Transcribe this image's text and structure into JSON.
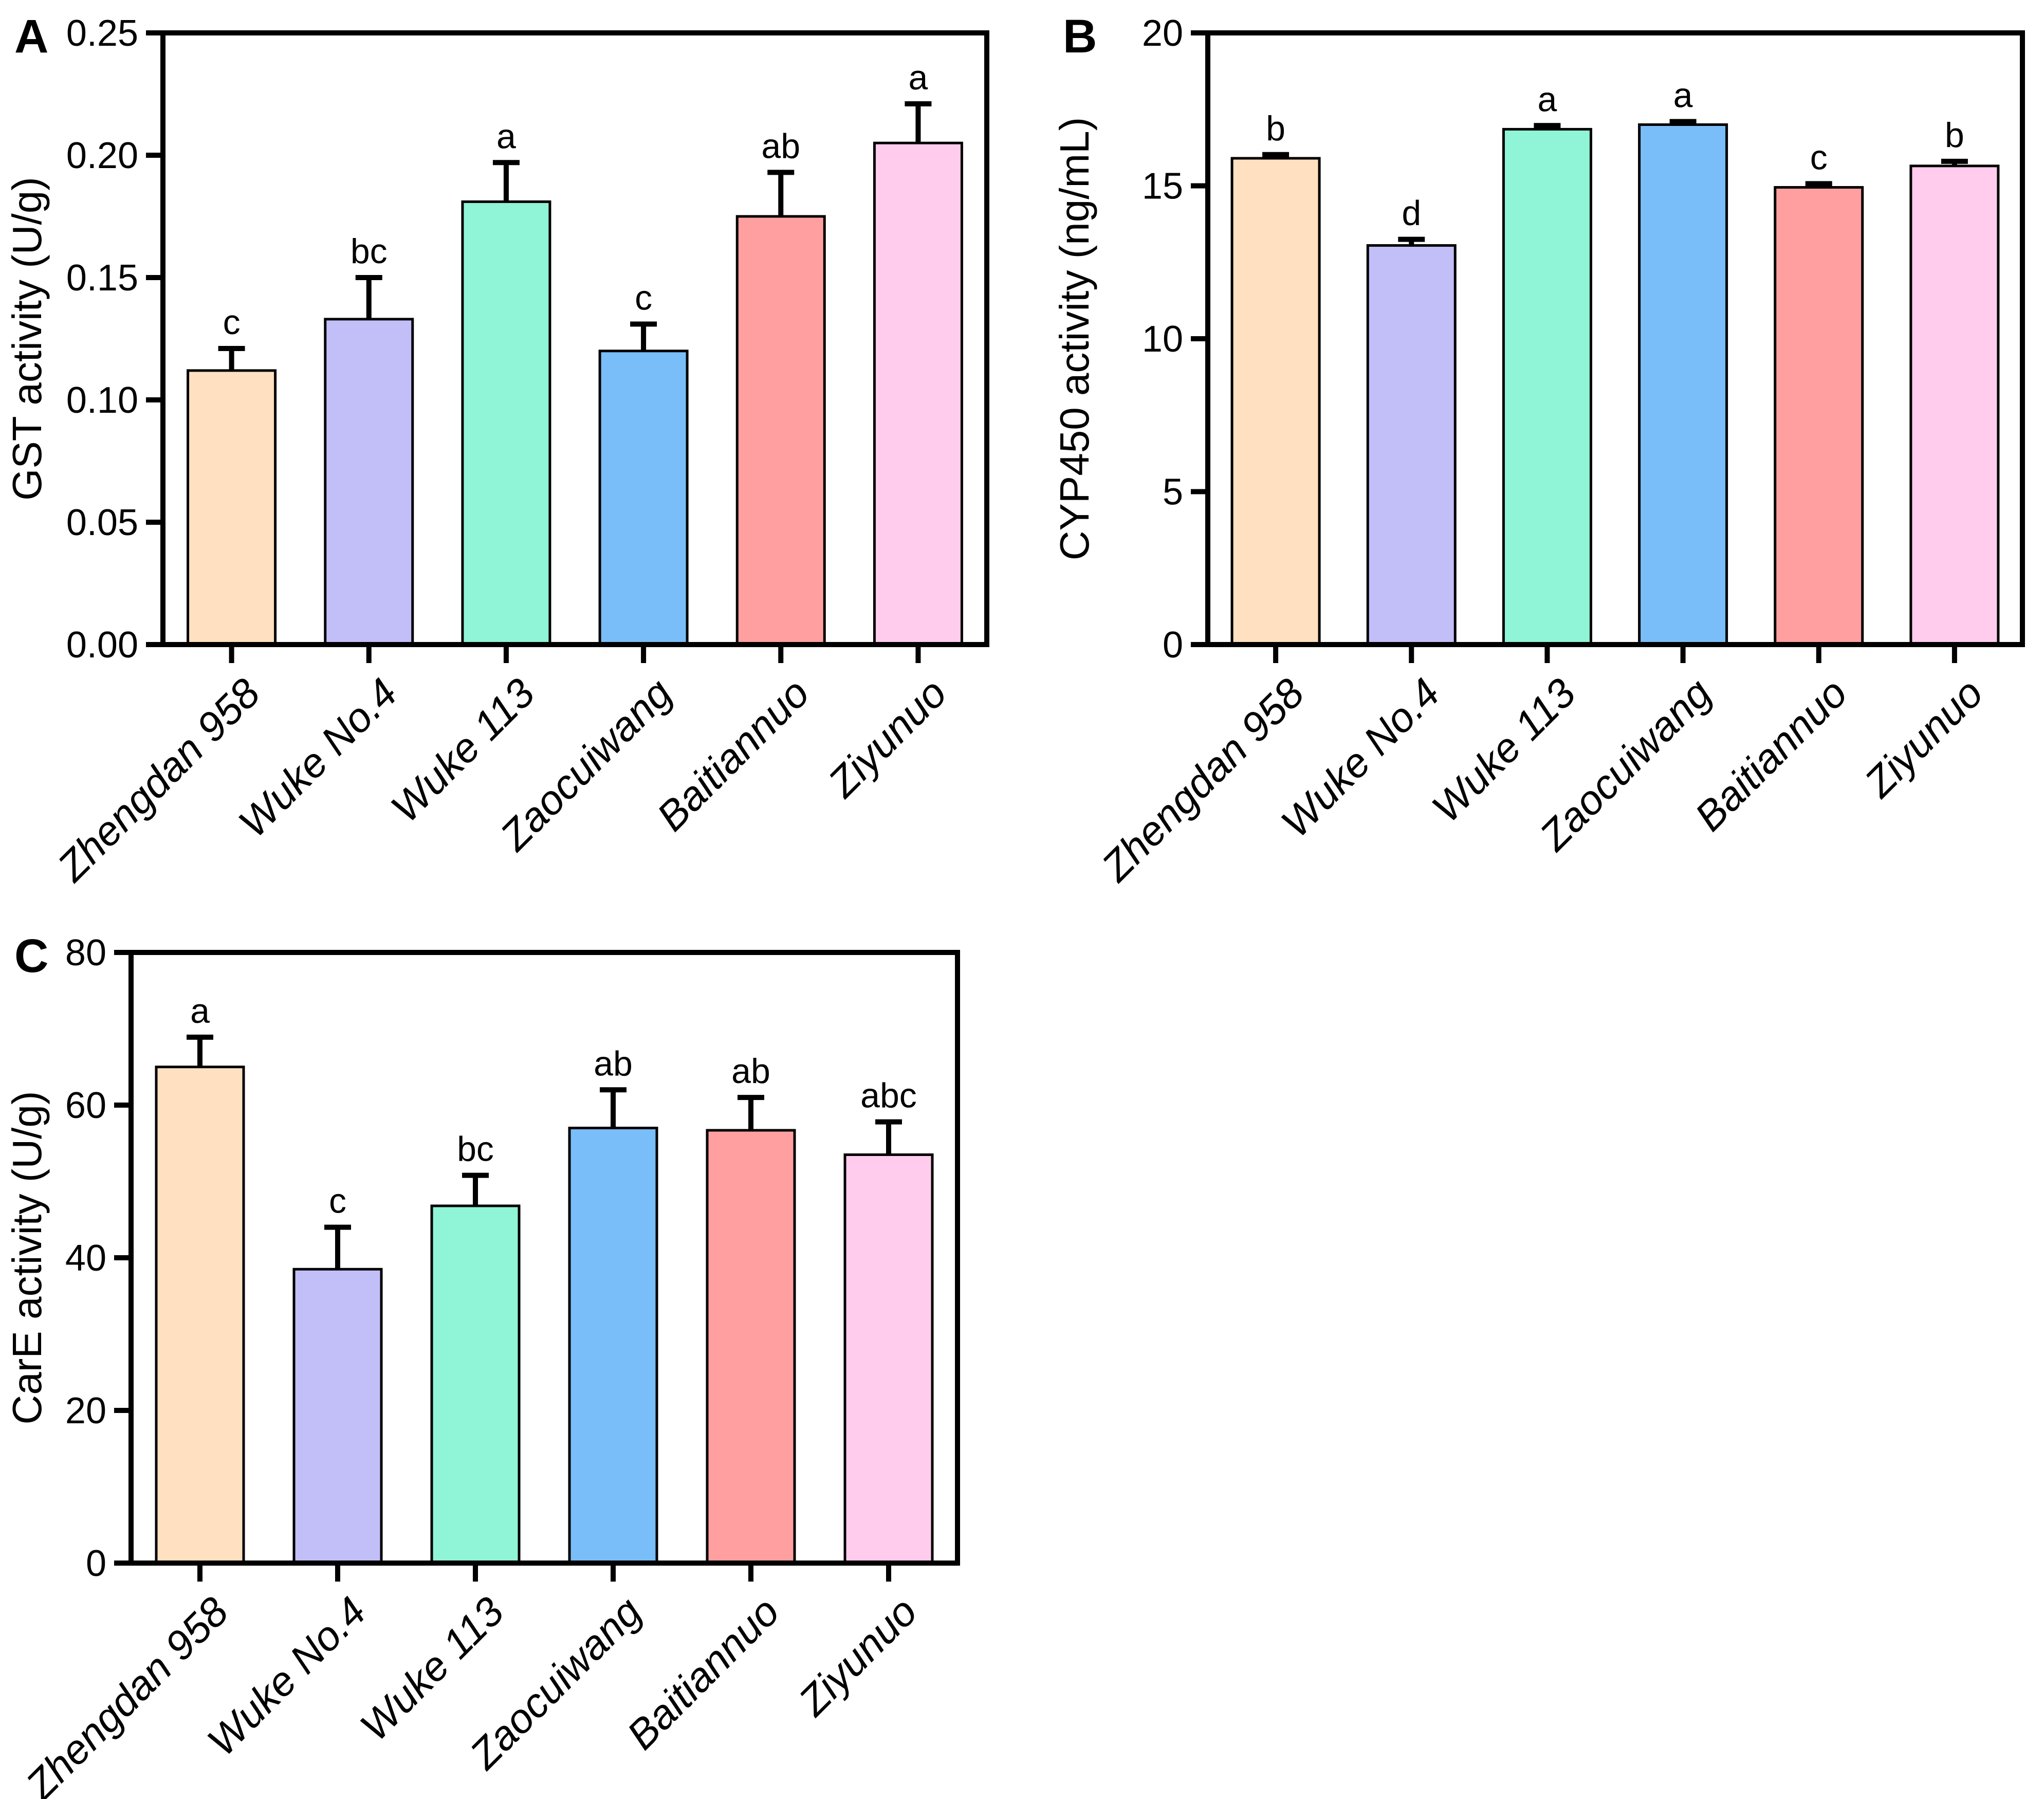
{
  "chart_data": [
    {
      "type": "bar",
      "panel_label": "A",
      "title": "",
      "xlabel": "",
      "ylabel": "GST activity (U/g)",
      "categories": [
        "Zhengdan 958",
        "Wuke No.4",
        "Wuke 113",
        "Zaocuiwang",
        "Baitiannuo",
        "Ziyunuo"
      ],
      "values": [
        0.112,
        0.133,
        0.181,
        0.12,
        0.175,
        0.205
      ],
      "errors": [
        0.009,
        0.017,
        0.016,
        0.011,
        0.018,
        0.016
      ],
      "sig_letters": [
        "c",
        "bc",
        "a",
        "c",
        "ab",
        "a"
      ],
      "ylim": [
        0,
        0.25
      ],
      "yticks": [
        0,
        0.05,
        0.1,
        0.15,
        0.2,
        0.25
      ],
      "ytick_labels": [
        "0.00",
        "0.05",
        "0.10",
        "0.15",
        "0.20",
        "0.25"
      ],
      "grid": "off",
      "legend": "none",
      "bar_colors": [
        "#FFE0C0",
        "#C2BEF8",
        "#90F4D6",
        "#79BEF8",
        "#FF9F9F",
        "#FFCCEE"
      ],
      "bar_outline_color": "#000000"
    },
    {
      "type": "bar",
      "panel_label": "B",
      "title": "",
      "xlabel": "",
      "ylabel": "CYP450 activity (ng/mL)",
      "categories": [
        "Zhengdan 958",
        "Wuke No.4",
        "Wuke 113",
        "Zaocuiwang",
        "Baitiannuo",
        "Ziyunuo"
      ],
      "values": [
        15.9,
        13.05,
        16.85,
        17.0,
        14.95,
        15.65
      ],
      "errors": [
        0.12,
        0.2,
        0.12,
        0.1,
        0.12,
        0.15
      ],
      "sig_letters": [
        "b",
        "d",
        "a",
        "a",
        "c",
        "b"
      ],
      "ylim": [
        0,
        20
      ],
      "yticks": [
        0,
        5,
        10,
        15,
        20
      ],
      "ytick_labels": [
        "0",
        "5",
        "10",
        "15",
        "20"
      ],
      "grid": "off",
      "legend": "none",
      "bar_colors": [
        "#FFE0C0",
        "#C2BEF8",
        "#90F4D6",
        "#79BEF8",
        "#FF9F9F",
        "#FFCCEE"
      ],
      "bar_outline_color": "#000000"
    },
    {
      "type": "bar",
      "panel_label": "C",
      "title": "",
      "xlabel": "",
      "ylabel": "CarE activity (U/g)",
      "categories": [
        "Zhengdan 958",
        "Wuke No.4",
        "Wuke 113",
        "Zaocuiwang",
        "Baitiannuo",
        "Ziyunuo"
      ],
      "values": [
        65,
        38.5,
        46.8,
        57,
        56.7,
        53.5
      ],
      "errors": [
        3.9,
        5.5,
        4.0,
        5.0,
        4.3,
        4.3
      ],
      "sig_letters": [
        "a",
        "c",
        "bc",
        "ab",
        "ab",
        "abc"
      ],
      "ylim": [
        0,
        80
      ],
      "yticks": [
        0,
        20,
        40,
        60,
        80
      ],
      "ytick_labels": [
        "0",
        "20",
        "40",
        "60",
        "80"
      ],
      "grid": "off",
      "legend": "none",
      "bar_colors": [
        "#FFE0C0",
        "#C2BEF8",
        "#90F4D6",
        "#79BEF8",
        "#FF9F9F",
        "#FFCCEE"
      ],
      "bar_outline_color": "#000000"
    }
  ]
}
